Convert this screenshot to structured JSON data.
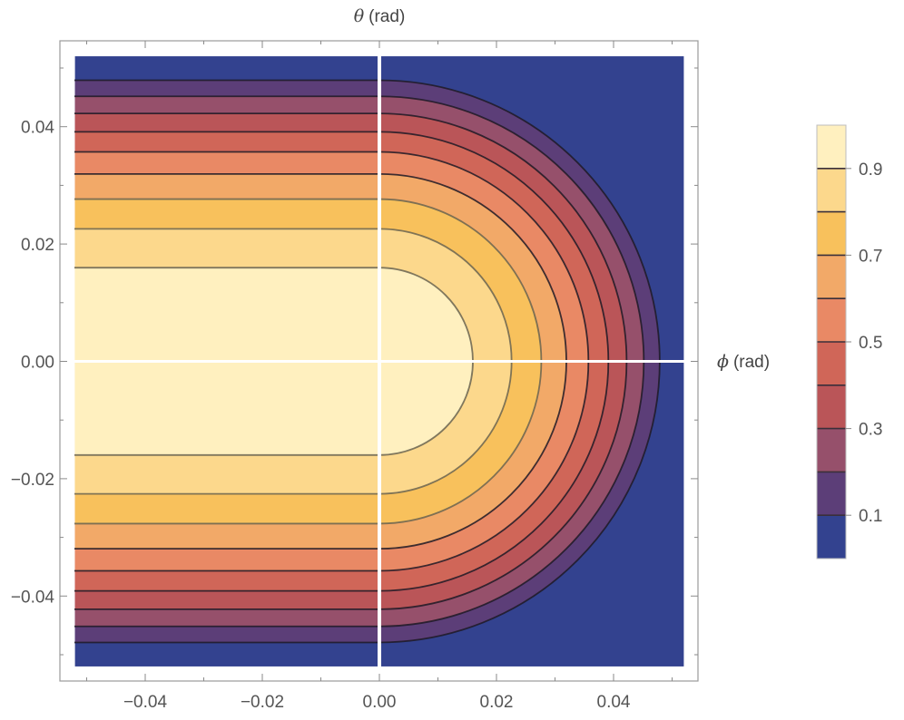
{
  "chart_data": {
    "type": "contour",
    "xlabel_symbol": "ϕ",
    "xlabel_unit": "(rad)",
    "ylabel_symbol": "θ",
    "ylabel_unit": "(rad)",
    "xlim": [
      -0.052,
      0.052
    ],
    "ylim": [
      -0.052,
      0.052
    ],
    "frame_range": [
      -0.055,
      0.055
    ],
    "x_ticks": [
      {
        "value": -0.04,
        "label": "−0.04"
      },
      {
        "value": -0.02,
        "label": "−0.02"
      },
      {
        "value": 0.0,
        "label": "0.00"
      },
      {
        "value": 0.02,
        "label": "0.02"
      },
      {
        "value": 0.04,
        "label": "0.04"
      }
    ],
    "y_ticks": [
      {
        "value": 0.04,
        "label": "0.04"
      },
      {
        "value": 0.02,
        "label": "0.02"
      },
      {
        "value": 0.0,
        "label": "0.00"
      },
      {
        "value": -0.02,
        "label": "−0.02"
      },
      {
        "value": -0.04,
        "label": "−0.04"
      }
    ],
    "contour_levels": [
      0.1,
      0.2,
      0.3,
      0.4,
      0.5,
      0.6,
      0.7,
      0.8,
      0.9
    ],
    "contour_scale": 0.0505,
    "colorbar": {
      "range": [
        0,
        1
      ],
      "ticks": [
        {
          "value": 0.9,
          "label": "0.9"
        },
        {
          "value": 0.7,
          "label": "0.7"
        },
        {
          "value": 0.5,
          "label": "0.5"
        },
        {
          "value": 0.3,
          "label": "0.3"
        },
        {
          "value": 0.1,
          "label": "0.1"
        }
      ],
      "bands": [
        {
          "range": [
            0.0,
            0.1
          ],
          "color": "#33428f"
        },
        {
          "range": [
            0.1,
            0.2
          ],
          "color": "#5c3e78"
        },
        {
          "range": [
            0.2,
            0.3
          ],
          "color": "#96506b"
        },
        {
          "range": [
            0.3,
            0.4
          ],
          "color": "#ba5558"
        },
        {
          "range": [
            0.4,
            0.5
          ],
          "color": "#d06658"
        },
        {
          "range": [
            0.5,
            0.6
          ],
          "color": "#e98965"
        },
        {
          "range": [
            0.6,
            0.7
          ],
          "color": "#f2a968"
        },
        {
          "range": [
            0.7,
            0.8
          ],
          "color": "#f8c15c"
        },
        {
          "range": [
            0.8,
            0.9
          ],
          "color": "#fcd88c"
        },
        {
          "range": [
            0.9,
            1.0
          ],
          "color": "#fff0bf"
        }
      ]
    },
    "legend_position": "right",
    "contour_line_colors": {
      "low": "#1f1a26",
      "high": "#6a6450"
    },
    "grid": false
  }
}
